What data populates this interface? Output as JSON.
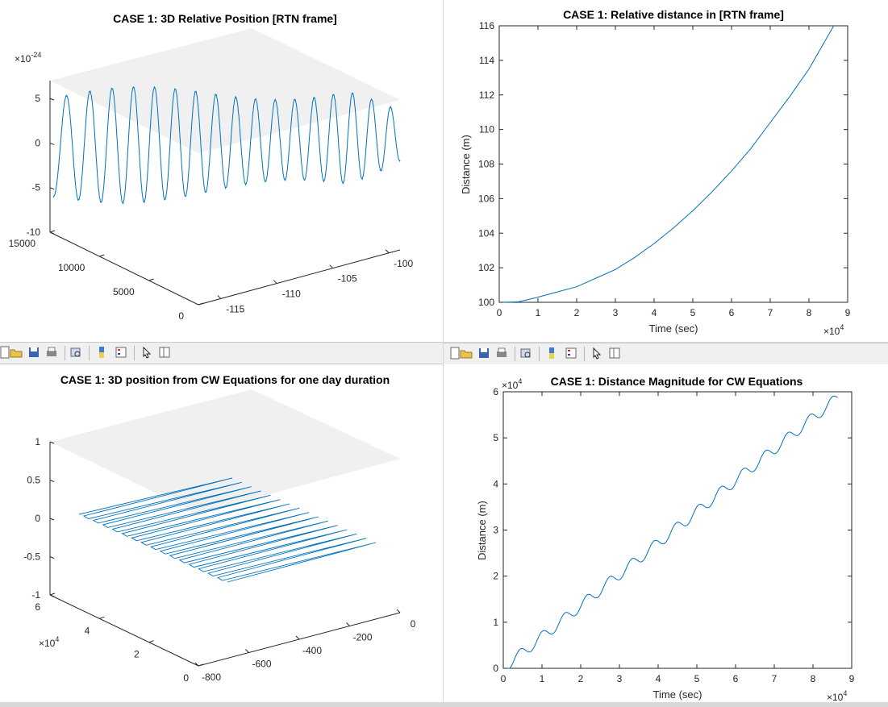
{
  "toolbar_icons": [
    "new-icon",
    "open-icon",
    "save-icon",
    "print-icon",
    "print-preview-icon",
    "colorbar-icon",
    "legend-icon",
    "pointer-icon",
    "property-editor-icon"
  ],
  "chart_data": [
    {
      "id": "p1",
      "type": "line3d",
      "title": "CASE 1: 3D Relative Position [RTN frame]",
      "xlabel": "",
      "ylabel": "",
      "zlabel": "",
      "x_ticks": [
        "-115",
        "-110",
        "-105",
        "-100"
      ],
      "y_ticks": [
        "0",
        "5000",
        "10000",
        "15000"
      ],
      "z_ticks": [
        "5",
        "0",
        "-5",
        "-10"
      ],
      "z_exponent": "×10",
      "z_exponent_power": "-24",
      "xlim": [
        -117,
        -99
      ],
      "ylim": [
        0,
        15000
      ],
      "zlim": [
        -10,
        7
      ],
      "series_color": "#0072BD",
      "oscillations": 17,
      "amplitude_range": [
        4.5,
        6.5
      ],
      "z_center": -0.5,
      "grid": false
    },
    {
      "id": "p2",
      "type": "line",
      "title": "CASE 1: Relative distance in [RTN frame]",
      "xlabel": "Time (sec)",
      "ylabel": "Distance (m)",
      "x_ticks": [
        "0",
        "1",
        "2",
        "3",
        "4",
        "5",
        "6",
        "7",
        "8",
        "9"
      ],
      "y_ticks": [
        "100",
        "102",
        "104",
        "106",
        "108",
        "110",
        "112",
        "114",
        "116"
      ],
      "x_exponent": "×10",
      "x_exponent_power": "4",
      "xlim": [
        0,
        9
      ],
      "ylim": [
        100,
        116
      ],
      "x": [
        0,
        0.5,
        1,
        1.5,
        2,
        2.5,
        3,
        3.5,
        4,
        4.5,
        5,
        5.5,
        6,
        6.5,
        7,
        7.5,
        8,
        8.64
      ],
      "y": [
        100,
        100.03,
        100.3,
        100.6,
        100.9,
        101.4,
        101.9,
        102.6,
        103.4,
        104.3,
        105.3,
        106.4,
        107.6,
        108.9,
        110.4,
        111.9,
        113.5,
        116
      ],
      "series_color": "#0072BD",
      "grid": false
    },
    {
      "id": "p3",
      "type": "line3d",
      "title": "CASE 1: 3D position from CW Equations for one day duration",
      "xlabel": "",
      "ylabel": "",
      "zlabel": "",
      "x_ticks": [
        "-800",
        "-600",
        "-400",
        "-200",
        "0"
      ],
      "y_ticks": [
        "0",
        "2",
        "4",
        "6"
      ],
      "z_ticks": [
        "1",
        "0.5",
        "0",
        "-0.5",
        "-1"
      ],
      "y_exponent": "×10",
      "y_exponent_power": "4",
      "xlim": [
        -800,
        0
      ],
      "ylim": [
        0,
        6
      ],
      "zlim": [
        -1,
        1
      ],
      "series_color": "#0072BD",
      "strokes": 16,
      "grid": false
    },
    {
      "id": "p4",
      "type": "line",
      "title": "CASE 1: Distance Magnitude for CW Equations",
      "xlabel": "Time (sec)",
      "ylabel": "Distance (m)",
      "x_ticks": [
        "0",
        "1",
        "2",
        "3",
        "4",
        "5",
        "6",
        "7",
        "8",
        "9"
      ],
      "y_ticks": [
        "0",
        "1",
        "2",
        "3",
        "4",
        "5",
        "6"
      ],
      "x_exponent": "×10",
      "x_exponent_power": "4",
      "y_exponent": "×10",
      "y_exponent_power": "4",
      "xlim": [
        0,
        9
      ],
      "ylim": [
        0,
        6
      ],
      "trend_end": [
        8.64,
        5.87
      ],
      "ripples": 15,
      "series_color": "#0072BD",
      "grid": false
    }
  ]
}
